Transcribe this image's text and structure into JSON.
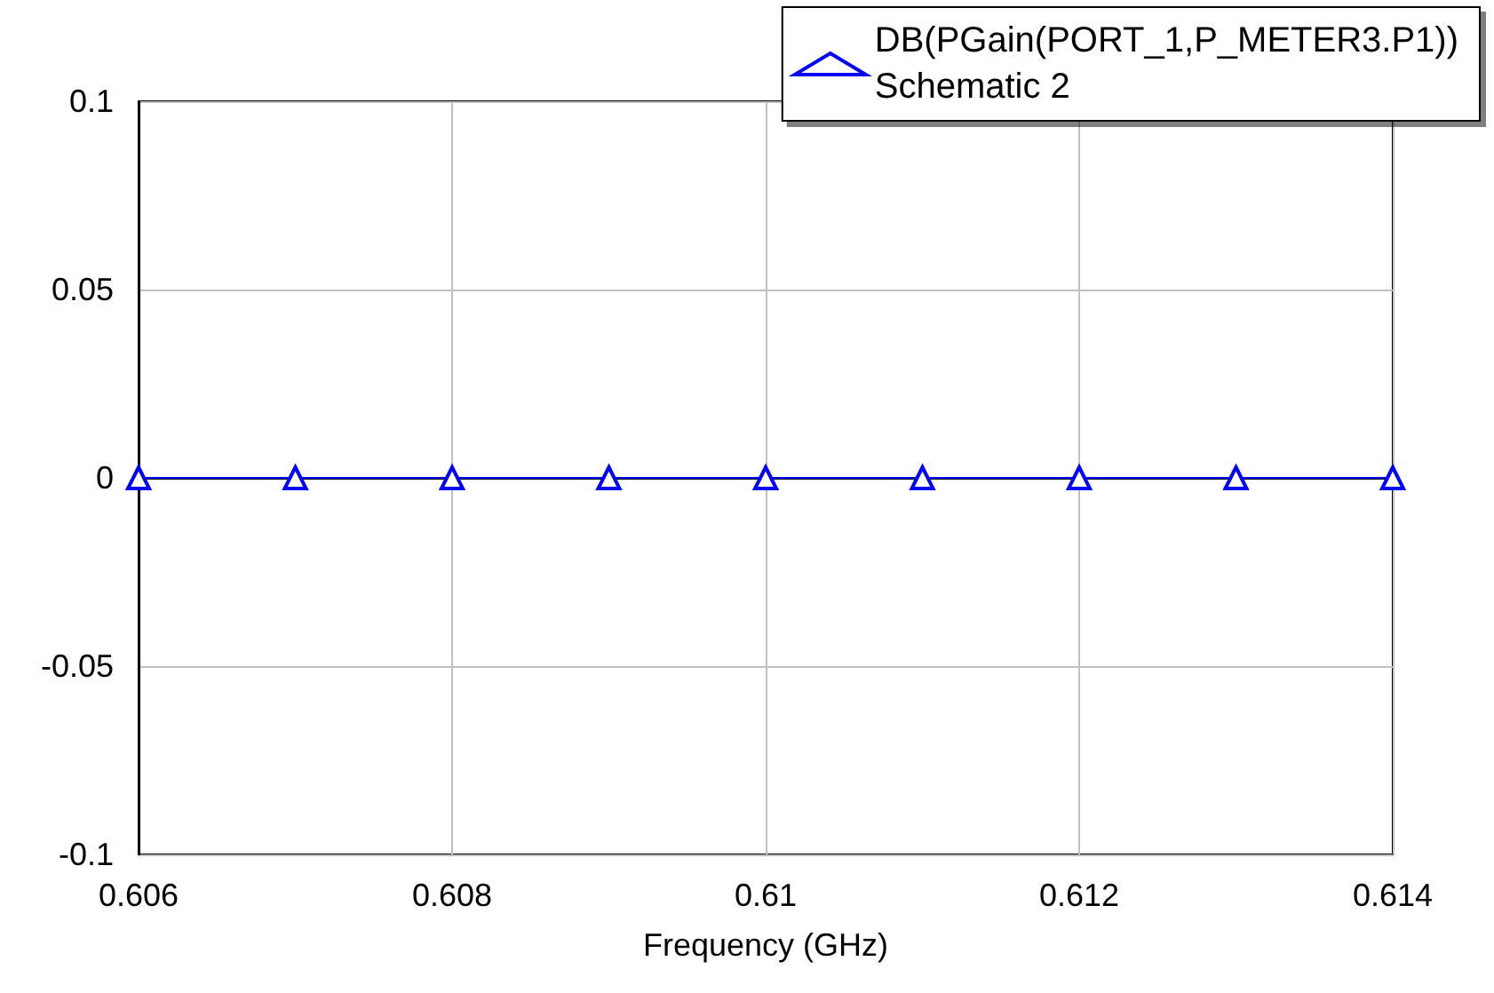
{
  "chart_data": {
    "type": "line",
    "xlabel": "Frequency (GHz)",
    "x": [
      0.606,
      0.607,
      0.608,
      0.609,
      0.61,
      0.611,
      0.612,
      0.613,
      0.614
    ],
    "series": [
      {
        "name": "DB(PGain(PORT_1,P_METER3.P1))",
        "color": "#0000ff",
        "values": [
          0,
          0,
          0,
          0,
          0,
          0,
          0,
          0,
          0
        ]
      }
    ],
    "annotations": [
      "Schematic 2"
    ],
    "xlim": [
      0.606,
      0.614
    ],
    "xticks": [
      0.606,
      0.608,
      0.61,
      0.612,
      0.614
    ],
    "ylim": [
      -0.1,
      0.1
    ],
    "yticks": [
      -0.1,
      -0.05,
      0,
      0.05,
      0.1
    ],
    "grid": true,
    "legend": "top right",
    "marker": "triangle",
    "line_style": "solid"
  }
}
